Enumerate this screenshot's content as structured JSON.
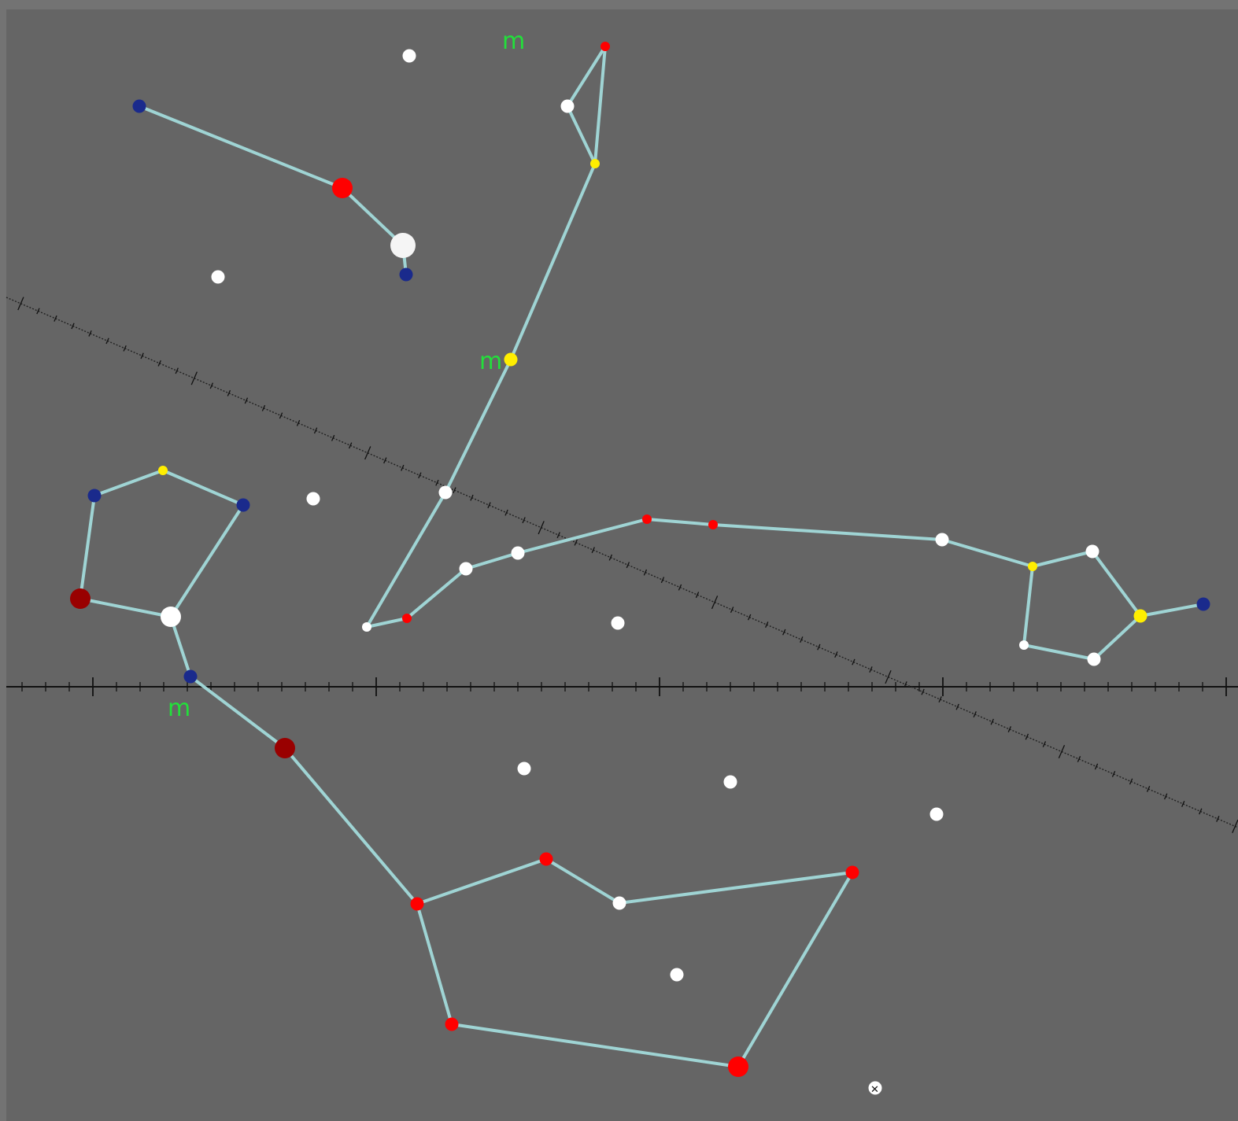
{
  "colors": {
    "background": "#656565",
    "frame": "#737373",
    "edge": "#9fd4d4",
    "axis": "#111111",
    "marker_text": "#22e03a"
  },
  "chart_data": {
    "type": "scatter",
    "title": "",
    "xlabel": "",
    "ylabel": "",
    "marker_text": "m",
    "stars": [
      {
        "id": "s1",
        "color": "#1a2a8c",
        "size": "small"
      },
      {
        "id": "s2",
        "color": "#ff0000",
        "size": "medium"
      },
      {
        "id": "s3",
        "color": "#f5f5f5",
        "size": "large"
      },
      {
        "id": "s4",
        "color": "#1a2a8c",
        "size": "small"
      },
      {
        "id": "s5",
        "color": "#ff0000",
        "size": "tiny"
      },
      {
        "id": "s6",
        "color": "#ffffff",
        "size": "small"
      },
      {
        "id": "s7",
        "color": "#ffee00",
        "size": "tiny"
      },
      {
        "id": "s8",
        "color": "#ffee00",
        "size": "small"
      },
      {
        "id": "s9",
        "color": "#ffffff",
        "size": "small"
      },
      {
        "id": "s10",
        "color": "#ffffff",
        "size": "tiny"
      },
      {
        "id": "s11",
        "color": "#ff0000",
        "size": "tiny"
      },
      {
        "id": "s12",
        "color": "#ffffff",
        "size": "small"
      },
      {
        "id": "s13",
        "color": "#ffffff",
        "size": "small"
      },
      {
        "id": "s14",
        "color": "#ff0000",
        "size": "tiny"
      },
      {
        "id": "s15",
        "color": "#ff0000",
        "size": "tiny"
      },
      {
        "id": "s16",
        "color": "#ffffff",
        "size": "small"
      },
      {
        "id": "s17",
        "color": "#ffee00",
        "size": "tiny"
      },
      {
        "id": "s18",
        "color": "#ffffff",
        "size": "small"
      },
      {
        "id": "s19",
        "color": "#ffee00",
        "size": "small"
      },
      {
        "id": "s20",
        "color": "#1a2a8c",
        "size": "small"
      },
      {
        "id": "s21",
        "color": "#ffffff",
        "size": "tiny"
      },
      {
        "id": "s22",
        "color": "#ffffff",
        "size": "small"
      },
      {
        "id": "s23",
        "color": "#1a2a8c",
        "size": "small"
      },
      {
        "id": "s24",
        "color": "#ffee00",
        "size": "tiny"
      },
      {
        "id": "s25",
        "color": "#1a2a8c",
        "size": "small"
      },
      {
        "id": "s26",
        "color": "#990000",
        "size": "medium"
      },
      {
        "id": "s27",
        "color": "#ffffff",
        "size": "medium"
      },
      {
        "id": "s28",
        "color": "#1a2a8c",
        "size": "small"
      },
      {
        "id": "s29",
        "color": "#990000",
        "size": "medium"
      },
      {
        "id": "s30",
        "color": "#ff0000",
        "size": "small"
      },
      {
        "id": "s31",
        "color": "#ff0000",
        "size": "small"
      },
      {
        "id": "s32",
        "color": "#ffffff",
        "size": "small"
      },
      {
        "id": "s33",
        "color": "#ff0000",
        "size": "small"
      },
      {
        "id": "s34",
        "color": "#ff0000",
        "size": "small"
      },
      {
        "id": "s35",
        "color": "#ff0000",
        "size": "medium"
      },
      {
        "id": "f1",
        "color": "#ffffff",
        "size": "small"
      },
      {
        "id": "f2",
        "color": "#ffffff",
        "size": "small"
      },
      {
        "id": "f3",
        "color": "#ffffff",
        "size": "small"
      },
      {
        "id": "f4",
        "color": "#ffffff",
        "size": "small"
      },
      {
        "id": "f5",
        "color": "#ffffff",
        "size": "small"
      },
      {
        "id": "f6",
        "color": "#ffffff",
        "size": "small"
      },
      {
        "id": "f7",
        "color": "#ffffff",
        "size": "small"
      },
      {
        "id": "f8",
        "color": "#ffffff",
        "size": "small"
      },
      {
        "id": "f9",
        "color": "#ffffff",
        "size": "small"
      }
    ],
    "edges": [
      [
        "s1",
        "s2"
      ],
      [
        "s2",
        "s3"
      ],
      [
        "s3",
        "s4"
      ],
      [
        "s5",
        "s6"
      ],
      [
        "s6",
        "s7"
      ],
      [
        "s5",
        "s7"
      ],
      [
        "s7",
        "s8"
      ],
      [
        "s8",
        "s9"
      ],
      [
        "s9",
        "s10"
      ],
      [
        "s10",
        "s11"
      ],
      [
        "s11",
        "s12"
      ],
      [
        "s12",
        "s13"
      ],
      [
        "s13",
        "s14"
      ],
      [
        "s14",
        "s15"
      ],
      [
        "s15",
        "s16"
      ],
      [
        "s16",
        "s17"
      ],
      [
        "s17",
        "s18"
      ],
      [
        "s18",
        "s19"
      ],
      [
        "s19",
        "s20"
      ],
      [
        "s19",
        "s22"
      ],
      [
        "s22",
        "s21"
      ],
      [
        "s21",
        "s17"
      ],
      [
        "s23",
        "s24"
      ],
      [
        "s24",
        "s25"
      ],
      [
        "s25",
        "s27"
      ],
      [
        "s23",
        "s26"
      ],
      [
        "s26",
        "s27"
      ],
      [
        "s27",
        "s28"
      ],
      [
        "s28",
        "s29"
      ],
      [
        "s29",
        "s30"
      ],
      [
        "s30",
        "s31"
      ],
      [
        "s31",
        "s32"
      ],
      [
        "s32",
        "s33"
      ],
      [
        "s33",
        "s35"
      ],
      [
        "s35",
        "s34"
      ],
      [
        "s34",
        "s30"
      ]
    ]
  }
}
